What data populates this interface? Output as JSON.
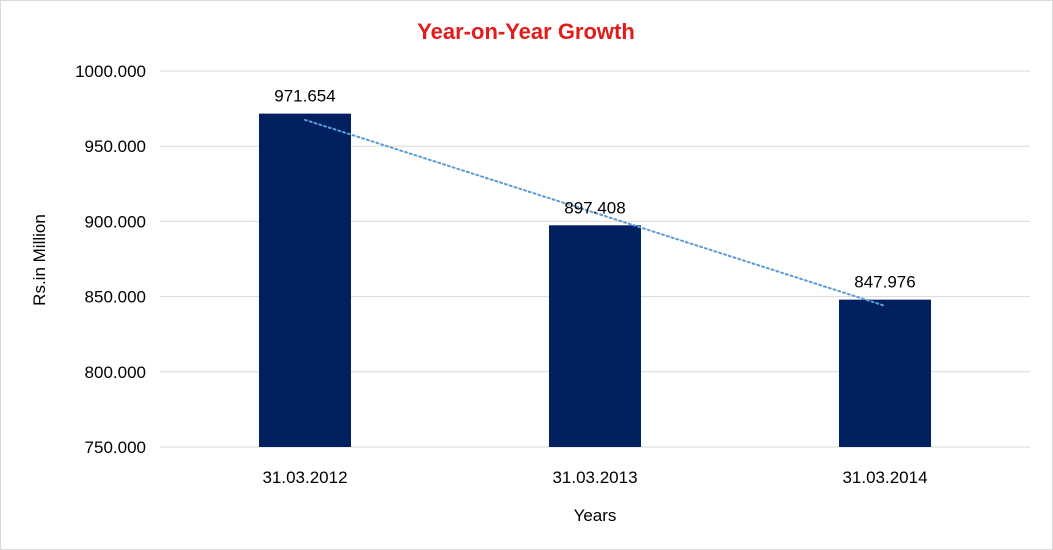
{
  "chart_data": {
    "type": "bar",
    "title": "Year-on-Year Growth",
    "xlabel": "Years",
    "ylabel": "Rs.in Million",
    "categories": [
      "31.03.2012",
      "31.03.2013",
      "31.03.2014"
    ],
    "values": [
      971.654,
      897.408,
      847.976
    ],
    "data_labels": [
      "971.654",
      "897.408",
      "847.976"
    ],
    "ylim": [
      750,
      1000
    ],
    "yticks": [
      750,
      800,
      850,
      900,
      950,
      1000
    ],
    "ytick_labels": [
      "750.000",
      "800.000",
      "850.000",
      "900.000",
      "950.000",
      "1000.000"
    ],
    "grid": true,
    "legend": "none",
    "trendline": {
      "type": "linear",
      "style": "dotted"
    },
    "colors": {
      "title": "#e31b1b",
      "bar": "#002060",
      "gridline": "#d9d9d9",
      "trendline": "#5b9bd5"
    }
  }
}
